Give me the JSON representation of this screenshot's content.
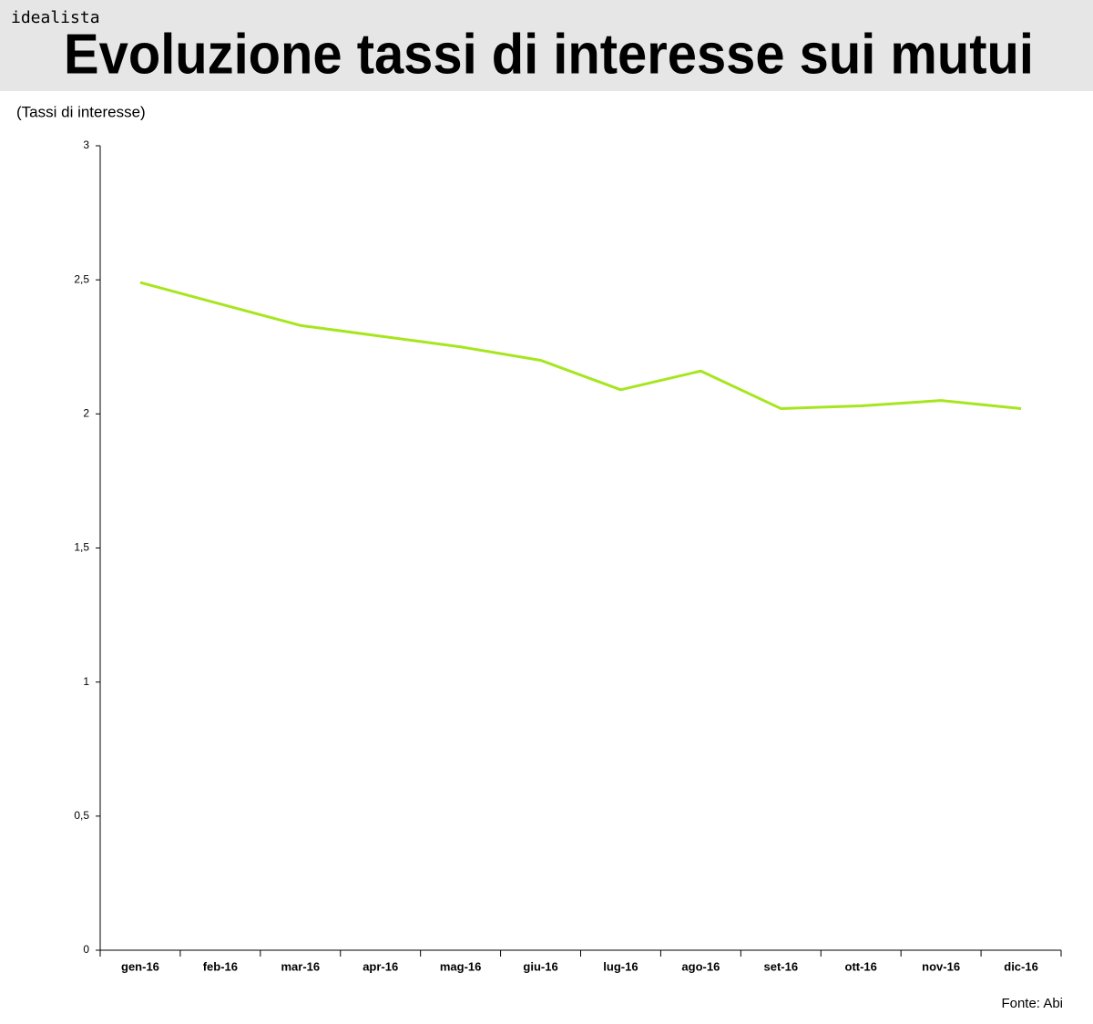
{
  "chart_data": {
    "type": "line",
    "brand": "idealista",
    "title": "Evoluzione tassi di interesse sui mutui",
    "y_label": "(Tassi di interesse)",
    "source": "Fonte: Abi",
    "categories": [
      "gen-16",
      "feb-16",
      "mar-16",
      "apr-16",
      "mag-16",
      "giu-16",
      "lug-16",
      "ago-16",
      "set-16",
      "ott-16",
      "nov-16",
      "dic-16"
    ],
    "values": [
      2.49,
      2.41,
      2.33,
      2.29,
      2.25,
      2.2,
      2.09,
      2.16,
      2.02,
      2.03,
      2.05,
      2.02
    ],
    "color": "#a6e61e",
    "ylim": [
      0,
      3
    ],
    "yticks": [
      0,
      {
        "value": 0.5,
        "label": "0,5"
      },
      1,
      {
        "value": 1.5,
        "label": "1,5"
      },
      2,
      {
        "value": 2.5,
        "label": "2,5"
      },
      3
    ],
    "grid": false
  }
}
